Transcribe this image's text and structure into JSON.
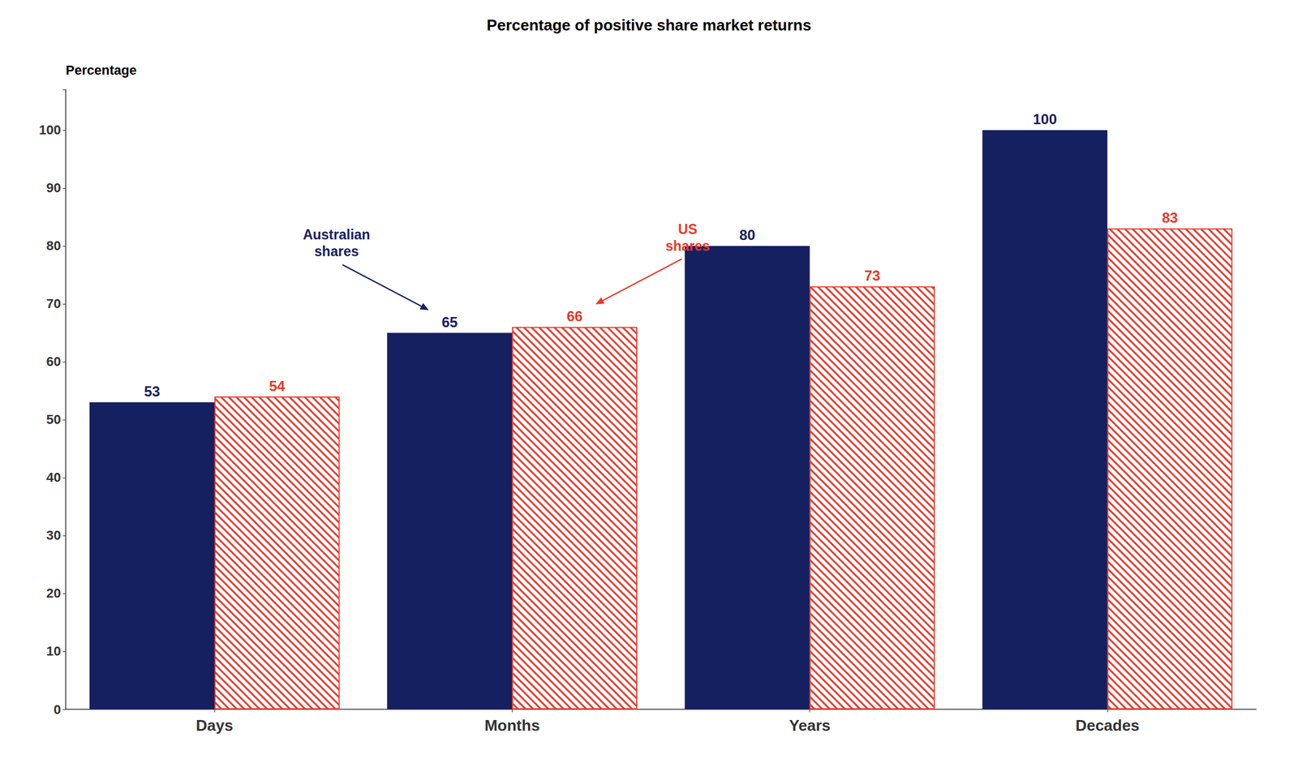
{
  "chart_data": {
    "type": "bar",
    "title": "Percentage of positive share market returns",
    "ylabel": "Percentage",
    "categories": [
      "Days",
      "Months",
      "Years",
      "Decades"
    ],
    "series": [
      {
        "name": "Australian\nshares",
        "color": "#152060",
        "values": [
          53,
          65,
          80,
          100
        ]
      },
      {
        "name": "US\nshares",
        "color": "#e8392a",
        "values": [
          54,
          66,
          73,
          83
        ]
      }
    ],
    "annotations": [
      {
        "text": "Australian\nshares",
        "series": "Australian\nshares",
        "category": "Months"
      },
      {
        "text": "US\nshares",
        "series": "US\nshares",
        "category": "Months"
      }
    ],
    "ylim": [
      0,
      107
    ],
    "yticks": [
      0,
      10,
      20,
      30,
      40,
      50,
      60,
      70,
      80,
      90,
      100
    ],
    "data_labels": true,
    "grid": false
  }
}
